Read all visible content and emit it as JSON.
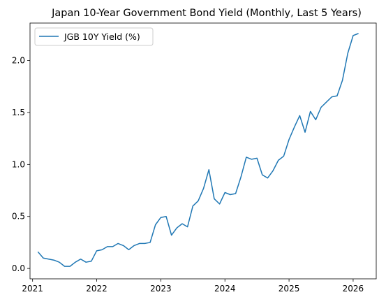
{
  "chart_data": {
    "type": "line",
    "title": "Japan 10-Year Government Bond Yield (Monthly, Last 5 Years)",
    "xlabel": "",
    "ylabel": "",
    "x_ticks": [
      2021,
      2022,
      2023,
      2024,
      2025,
      2026
    ],
    "y_ticks": [
      "0.0",
      "0.5",
      "1.0",
      "1.5",
      "2.0"
    ],
    "xlim": [
      2020.96,
      2026.36
    ],
    "ylim": [
      -0.1,
      2.36
    ],
    "grid": false,
    "legend_position": "upper left",
    "series": [
      {
        "name": "JGB 10Y Yield (%)",
        "color": "#1f77b4",
        "x": [
          "2021-02",
          "2021-03",
          "2021-04",
          "2021-05",
          "2021-06",
          "2021-07",
          "2021-08",
          "2021-09",
          "2021-10",
          "2021-11",
          "2021-12",
          "2022-01",
          "2022-02",
          "2022-03",
          "2022-04",
          "2022-05",
          "2022-06",
          "2022-07",
          "2022-08",
          "2022-09",
          "2022-10",
          "2022-11",
          "2022-12",
          "2023-01",
          "2023-02",
          "2023-03",
          "2023-04",
          "2023-05",
          "2023-06",
          "2023-07",
          "2023-08",
          "2023-09",
          "2023-10",
          "2023-11",
          "2023-12",
          "2024-01",
          "2024-02",
          "2024-03",
          "2024-04",
          "2024-05",
          "2024-06",
          "2024-07",
          "2024-08",
          "2024-09",
          "2024-10",
          "2024-11",
          "2024-12",
          "2025-01",
          "2025-02",
          "2025-03",
          "2025-04",
          "2025-05",
          "2025-06",
          "2025-07",
          "2025-08",
          "2025-09",
          "2025-10",
          "2025-11",
          "2025-12",
          "2026-01",
          "2026-02"
        ],
        "values": [
          0.16,
          0.1,
          0.09,
          0.08,
          0.06,
          0.02,
          0.02,
          0.06,
          0.09,
          0.06,
          0.07,
          0.17,
          0.18,
          0.21,
          0.21,
          0.24,
          0.22,
          0.18,
          0.22,
          0.24,
          0.24,
          0.25,
          0.42,
          0.49,
          0.5,
          0.32,
          0.39,
          0.43,
          0.4,
          0.6,
          0.65,
          0.77,
          0.95,
          0.67,
          0.62,
          0.73,
          0.71,
          0.72,
          0.88,
          1.07,
          1.05,
          1.06,
          0.9,
          0.87,
          0.94,
          1.04,
          1.08,
          1.24,
          1.36,
          1.47,
          1.31,
          1.51,
          1.43,
          1.55,
          1.6,
          1.65,
          1.66,
          1.81,
          2.07,
          2.24,
          2.26
        ]
      }
    ]
  }
}
